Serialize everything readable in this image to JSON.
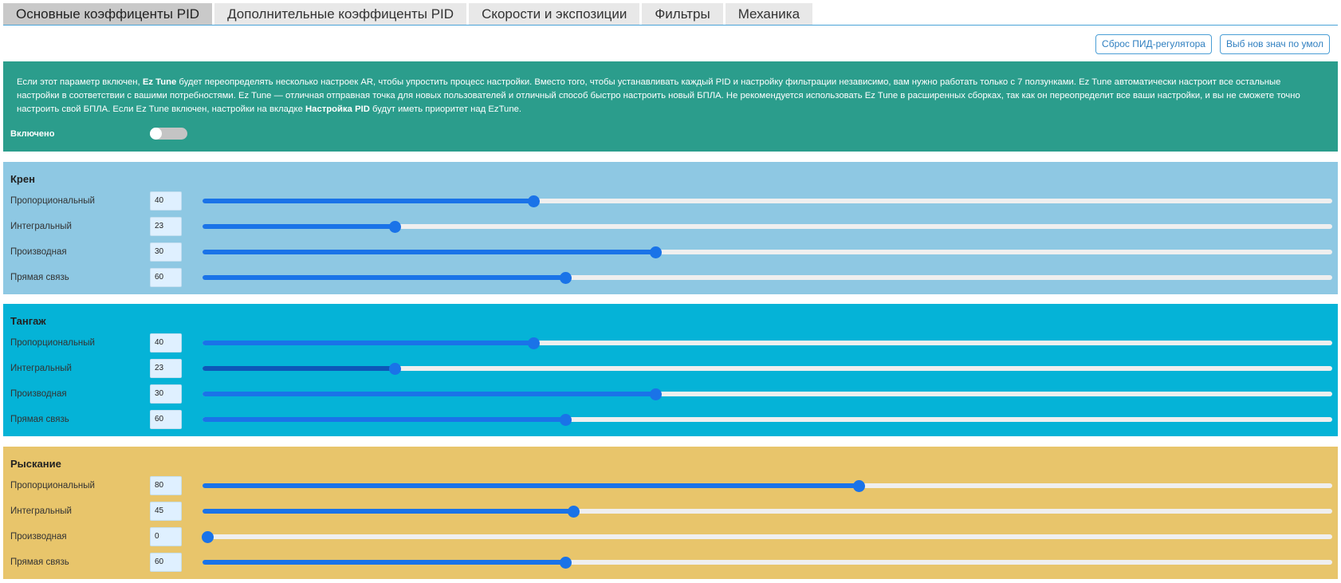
{
  "tabs": [
    {
      "label": "Основные коэффиценты PID",
      "active": true
    },
    {
      "label": "Дополнительные коэффиценты PID",
      "active": false
    },
    {
      "label": "Скорости и экспозиции",
      "active": false
    },
    {
      "label": "Фильтры",
      "active": false
    },
    {
      "label": "Механика",
      "active": false
    }
  ],
  "actions": {
    "reset_pid": "Сброс ПИД-регулятора",
    "load_defaults": "Выб нов знач по умол"
  },
  "eztune": {
    "text_html": "Если этот параметр включен, <b>Ez Tune</b> будет переопределять несколько настроек AR, чтобы упростить процесс настройки. Вместо того, чтобы устанавливать каждый PID и настройку фильтрации независимо, вам нужно работать только с 7 ползунками. Ez Tune автоматически настроит все остальные настройки в соответствии с вашими потребностями. Ez Tune — отличная отправная точка для новых пользователей и отличный способ быстро настроить новый БПЛА. Не рекомендуется использовать Ez Tune в расширенных сборках, так как он переопределит все ваши настройки, и вы не сможете точно настроить свой БПЛА. Если Ez Tune включен, настройки на вкладке <b>Настройка PID</b> будут иметь приоритет над EzTune.",
    "enabled_label": "Включено",
    "enabled": false
  },
  "axes": [
    {
      "id": "roll",
      "title": "Крен",
      "params": [
        {
          "label": "Пропорциональный",
          "value": "40",
          "level": 0.293
        },
        {
          "label": "Интегральный",
          "value": "23",
          "level": 0.17
        },
        {
          "label": "Производная",
          "value": "30",
          "level": 0.401
        },
        {
          "label": "Прямая связь",
          "value": "60",
          "level": 0.321
        }
      ]
    },
    {
      "id": "pitch",
      "title": "Тангаж",
      "params": [
        {
          "label": "Пропорциональный",
          "value": "40",
          "level": 0.293
        },
        {
          "label": "Интегральный",
          "value": "23",
          "level": 0.17,
          "dark": true
        },
        {
          "label": "Производная",
          "value": "30",
          "level": 0.401
        },
        {
          "label": "Прямая связь",
          "value": "60",
          "level": 0.321
        }
      ]
    },
    {
      "id": "yaw",
      "title": "Рыскание",
      "params": [
        {
          "label": "Пропорциональный",
          "value": "80",
          "level": 0.581
        },
        {
          "label": "Интегральный",
          "value": "45",
          "level": 0.328
        },
        {
          "label": "Производная",
          "value": "0",
          "level": 0.004
        },
        {
          "label": "Прямая связь",
          "value": "60",
          "level": 0.321
        }
      ]
    }
  ]
}
